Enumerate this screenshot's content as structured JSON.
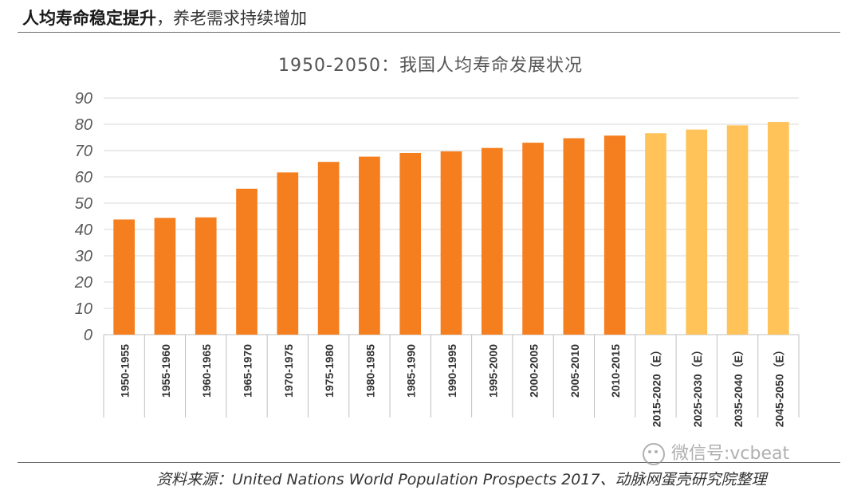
{
  "header": {
    "title_bold": "人均寿命稳定提升",
    "title_rest": "，养老需求持续增加"
  },
  "source": "资料来源：United Nations World Population Prospects 2017、动脉网蛋壳研究院整理",
  "watermark": "微信号:vcbeat",
  "colors": {
    "actual": "#F57F1E",
    "estimate": "#FFC35A",
    "grid": "#D9D9D9",
    "tick_text": "#595959"
  },
  "chart_data": {
    "type": "bar",
    "title": "1950-2050：我国人均寿命发展状况",
    "xlabel": "",
    "ylabel": "",
    "ylim": [
      0,
      90
    ],
    "yticks": [
      0,
      10,
      20,
      30,
      40,
      50,
      60,
      70,
      80,
      90
    ],
    "grid": true,
    "categories": [
      "1950-1955",
      "1955-1960",
      "1960-1965",
      "1965-1970",
      "1970-1975",
      "1975-1980",
      "1980-1985",
      "1985-1990",
      "1990-1995",
      "1995-2000",
      "2000-2005",
      "2005-2010",
      "2010-2015",
      "2015-2020（E）",
      "2025-2030（E）",
      "2035-2040（E）",
      "2045-2050（E）"
    ],
    "values": [
      43.8,
      44.4,
      44.6,
      55.5,
      61.7,
      65.7,
      67.7,
      69.1,
      69.7,
      71.0,
      73.0,
      74.7,
      75.7,
      76.6,
      78.0,
      79.6,
      80.9
    ],
    "estimated": [
      false,
      false,
      false,
      false,
      false,
      false,
      false,
      false,
      false,
      false,
      false,
      false,
      false,
      true,
      true,
      true,
      true
    ]
  }
}
